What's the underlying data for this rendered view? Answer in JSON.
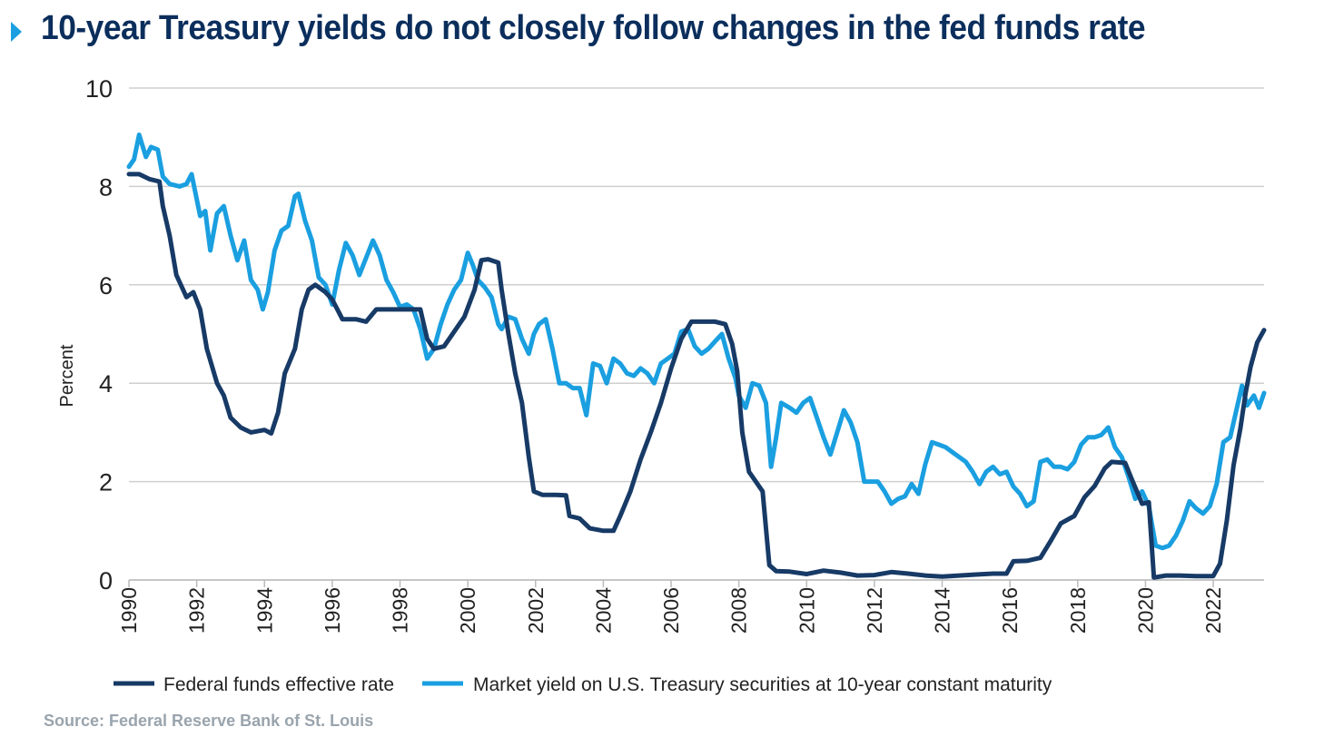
{
  "title": "10-year Treasury yields do not closely follow changes in the fed funds rate",
  "source": "Source: Federal Reserve Bank of St. Louis",
  "colors": {
    "title": "#0b2e5c",
    "arrow": "#1a9fe0",
    "fed": "#173a66",
    "treasury": "#1a9fe0",
    "grid": "#cfcfcf"
  },
  "chart_data": {
    "type": "line",
    "title": "10-year Treasury yields do not closely follow changes in the fed funds rate",
    "ylabel": "Percent",
    "xlabel": "",
    "ylim": [
      0,
      10
    ],
    "xlim": [
      1990,
      2023.5
    ],
    "yticks": [
      0,
      2,
      4,
      6,
      8,
      10
    ],
    "xticks": [
      1990,
      1992,
      1994,
      1996,
      1998,
      2000,
      2002,
      2004,
      2006,
      2008,
      2010,
      2012,
      2014,
      2016,
      2018,
      2020,
      2022
    ],
    "grid": "horizontal",
    "legend_position": "bottom",
    "series": [
      {
        "name": "Federal funds effective rate",
        "color": "#173a66",
        "points": [
          [
            1990.0,
            8.25
          ],
          [
            1990.3,
            8.25
          ],
          [
            1990.6,
            8.15
          ],
          [
            1990.9,
            8.1
          ],
          [
            1991.0,
            7.6
          ],
          [
            1991.2,
            7.0
          ],
          [
            1991.4,
            6.2
          ],
          [
            1991.7,
            5.75
          ],
          [
            1991.9,
            5.85
          ],
          [
            1992.1,
            5.5
          ],
          [
            1992.3,
            4.7
          ],
          [
            1992.6,
            4.0
          ],
          [
            1992.8,
            3.75
          ],
          [
            1993.0,
            3.3
          ],
          [
            1993.3,
            3.1
          ],
          [
            1993.6,
            3.0
          ],
          [
            1994.0,
            3.05
          ],
          [
            1994.2,
            2.98
          ],
          [
            1994.4,
            3.4
          ],
          [
            1994.6,
            4.2
          ],
          [
            1994.9,
            4.7
          ],
          [
            1995.1,
            5.5
          ],
          [
            1995.3,
            5.9
          ],
          [
            1995.5,
            6.0
          ],
          [
            1995.8,
            5.85
          ],
          [
            1996.0,
            5.7
          ],
          [
            1996.3,
            5.3
          ],
          [
            1996.7,
            5.3
          ],
          [
            1997.0,
            5.25
          ],
          [
            1997.3,
            5.5
          ],
          [
            1997.8,
            5.5
          ],
          [
            1998.3,
            5.5
          ],
          [
            1998.6,
            5.5
          ],
          [
            1998.8,
            4.9
          ],
          [
            1999.0,
            4.7
          ],
          [
            1999.3,
            4.75
          ],
          [
            1999.6,
            5.05
          ],
          [
            1999.9,
            5.35
          ],
          [
            2000.2,
            5.9
          ],
          [
            2000.4,
            6.5
          ],
          [
            2000.6,
            6.52
          ],
          [
            2000.9,
            6.45
          ],
          [
            2001.0,
            5.9
          ],
          [
            2001.2,
            5.0
          ],
          [
            2001.4,
            4.2
          ],
          [
            2001.6,
            3.6
          ],
          [
            2001.8,
            2.5
          ],
          [
            2001.95,
            1.8
          ],
          [
            2002.2,
            1.73
          ],
          [
            2002.6,
            1.73
          ],
          [
            2002.9,
            1.72
          ],
          [
            2003.0,
            1.3
          ],
          [
            2003.3,
            1.25
          ],
          [
            2003.6,
            1.05
          ],
          [
            2004.0,
            1.0
          ],
          [
            2004.3,
            1.0
          ],
          [
            2004.5,
            1.3
          ],
          [
            2004.8,
            1.8
          ],
          [
            2005.1,
            2.45
          ],
          [
            2005.4,
            3.0
          ],
          [
            2005.7,
            3.6
          ],
          [
            2006.0,
            4.3
          ],
          [
            2006.3,
            4.9
          ],
          [
            2006.6,
            5.25
          ],
          [
            2006.9,
            5.25
          ],
          [
            2007.3,
            5.25
          ],
          [
            2007.6,
            5.2
          ],
          [
            2007.8,
            4.8
          ],
          [
            2007.95,
            4.25
          ],
          [
            2008.1,
            3.0
          ],
          [
            2008.3,
            2.2
          ],
          [
            2008.5,
            2.0
          ],
          [
            2008.7,
            1.8
          ],
          [
            2008.9,
            0.3
          ],
          [
            2009.1,
            0.18
          ],
          [
            2009.5,
            0.17
          ],
          [
            2010.0,
            0.12
          ],
          [
            2010.5,
            0.19
          ],
          [
            2011.0,
            0.15
          ],
          [
            2011.5,
            0.09
          ],
          [
            2012.0,
            0.1
          ],
          [
            2012.5,
            0.16
          ],
          [
            2013.0,
            0.13
          ],
          [
            2013.5,
            0.09
          ],
          [
            2014.0,
            0.07
          ],
          [
            2014.5,
            0.09
          ],
          [
            2015.0,
            0.11
          ],
          [
            2015.5,
            0.13
          ],
          [
            2015.9,
            0.13
          ],
          [
            2016.1,
            0.38
          ],
          [
            2016.5,
            0.39
          ],
          [
            2016.9,
            0.45
          ],
          [
            2017.2,
            0.79
          ],
          [
            2017.5,
            1.15
          ],
          [
            2017.9,
            1.3
          ],
          [
            2018.2,
            1.68
          ],
          [
            2018.5,
            1.91
          ],
          [
            2018.8,
            2.27
          ],
          [
            2019.0,
            2.4
          ],
          [
            2019.4,
            2.38
          ],
          [
            2019.6,
            2.04
          ],
          [
            2019.9,
            1.55
          ],
          [
            2020.1,
            1.58
          ],
          [
            2020.25,
            0.05
          ],
          [
            2020.6,
            0.09
          ],
          [
            2021.0,
            0.09
          ],
          [
            2021.5,
            0.08
          ],
          [
            2022.0,
            0.08
          ],
          [
            2022.2,
            0.33
          ],
          [
            2022.4,
            1.21
          ],
          [
            2022.6,
            2.33
          ],
          [
            2022.8,
            3.08
          ],
          [
            2022.95,
            3.78
          ],
          [
            2023.1,
            4.33
          ],
          [
            2023.3,
            4.83
          ],
          [
            2023.5,
            5.08
          ]
        ]
      },
      {
        "name": "Market yield on U.S. Treasury securities at 10-year constant maturity",
        "color": "#1a9fe0",
        "points": [
          [
            1990.0,
            8.4
          ],
          [
            1990.15,
            8.55
          ],
          [
            1990.3,
            9.05
          ],
          [
            1990.5,
            8.6
          ],
          [
            1990.65,
            8.8
          ],
          [
            1990.85,
            8.75
          ],
          [
            1991.0,
            8.2
          ],
          [
            1991.2,
            8.05
          ],
          [
            1991.5,
            8.0
          ],
          [
            1991.7,
            8.05
          ],
          [
            1991.85,
            8.25
          ],
          [
            1992.1,
            7.4
          ],
          [
            1992.25,
            7.5
          ],
          [
            1992.4,
            6.7
          ],
          [
            1992.6,
            7.45
          ],
          [
            1992.8,
            7.6
          ],
          [
            1993.0,
            7.0
          ],
          [
            1993.2,
            6.5
          ],
          [
            1993.4,
            6.9
          ],
          [
            1993.6,
            6.1
          ],
          [
            1993.8,
            5.9
          ],
          [
            1993.95,
            5.5
          ],
          [
            1994.1,
            5.85
          ],
          [
            1994.3,
            6.7
          ],
          [
            1994.5,
            7.1
          ],
          [
            1994.7,
            7.2
          ],
          [
            1994.9,
            7.8
          ],
          [
            1995.0,
            7.85
          ],
          [
            1995.2,
            7.3
          ],
          [
            1995.4,
            6.9
          ],
          [
            1995.6,
            6.15
          ],
          [
            1995.8,
            6.0
          ],
          [
            1996.0,
            5.6
          ],
          [
            1996.2,
            6.3
          ],
          [
            1996.4,
            6.85
          ],
          [
            1996.6,
            6.6
          ],
          [
            1996.8,
            6.2
          ],
          [
            1997.0,
            6.55
          ],
          [
            1997.2,
            6.9
          ],
          [
            1997.4,
            6.6
          ],
          [
            1997.6,
            6.1
          ],
          [
            1997.8,
            5.85
          ],
          [
            1998.0,
            5.55
          ],
          [
            1998.2,
            5.6
          ],
          [
            1998.4,
            5.5
          ],
          [
            1998.6,
            5.1
          ],
          [
            1998.8,
            4.5
          ],
          [
            1999.0,
            4.7
          ],
          [
            1999.2,
            5.2
          ],
          [
            1999.4,
            5.6
          ],
          [
            1999.6,
            5.9
          ],
          [
            1999.8,
            6.1
          ],
          [
            2000.0,
            6.65
          ],
          [
            2000.15,
            6.4
          ],
          [
            2000.3,
            6.1
          ],
          [
            2000.5,
            5.95
          ],
          [
            2000.7,
            5.75
          ],
          [
            2000.9,
            5.2
          ],
          [
            2001.0,
            5.1
          ],
          [
            2001.2,
            5.35
          ],
          [
            2001.4,
            5.3
          ],
          [
            2001.6,
            4.9
          ],
          [
            2001.8,
            4.6
          ],
          [
            2001.95,
            5.0
          ],
          [
            2002.1,
            5.2
          ],
          [
            2002.3,
            5.3
          ],
          [
            2002.5,
            4.7
          ],
          [
            2002.7,
            4.0
          ],
          [
            2002.9,
            4.0
          ],
          [
            2003.1,
            3.9
          ],
          [
            2003.3,
            3.9
          ],
          [
            2003.5,
            3.35
          ],
          [
            2003.7,
            4.4
          ],
          [
            2003.9,
            4.35
          ],
          [
            2004.1,
            4.0
          ],
          [
            2004.3,
            4.5
          ],
          [
            2004.5,
            4.4
          ],
          [
            2004.7,
            4.2
          ],
          [
            2004.9,
            4.15
          ],
          [
            2005.1,
            4.3
          ],
          [
            2005.3,
            4.2
          ],
          [
            2005.5,
            4.0
          ],
          [
            2005.7,
            4.4
          ],
          [
            2005.9,
            4.5
          ],
          [
            2006.1,
            4.6
          ],
          [
            2006.3,
            5.05
          ],
          [
            2006.5,
            5.1
          ],
          [
            2006.7,
            4.75
          ],
          [
            2006.9,
            4.6
          ],
          [
            2007.1,
            4.7
          ],
          [
            2007.3,
            4.85
          ],
          [
            2007.5,
            5.0
          ],
          [
            2007.7,
            4.5
          ],
          [
            2007.9,
            4.1
          ],
          [
            2008.0,
            3.75
          ],
          [
            2008.2,
            3.5
          ],
          [
            2008.4,
            4.0
          ],
          [
            2008.6,
            3.95
          ],
          [
            2008.8,
            3.6
          ],
          [
            2008.95,
            2.3
          ],
          [
            2009.1,
            2.9
          ],
          [
            2009.25,
            3.6
          ],
          [
            2009.5,
            3.5
          ],
          [
            2009.7,
            3.4
          ],
          [
            2009.9,
            3.6
          ],
          [
            2010.1,
            3.7
          ],
          [
            2010.3,
            3.3
          ],
          [
            2010.5,
            2.9
          ],
          [
            2010.7,
            2.55
          ],
          [
            2010.9,
            3.0
          ],
          [
            2011.1,
            3.45
          ],
          [
            2011.3,
            3.2
          ],
          [
            2011.5,
            2.8
          ],
          [
            2011.7,
            2.0
          ],
          [
            2011.9,
            2.0
          ],
          [
            2012.1,
            2.0
          ],
          [
            2012.3,
            1.8
          ],
          [
            2012.5,
            1.55
          ],
          [
            2012.7,
            1.65
          ],
          [
            2012.9,
            1.7
          ],
          [
            2013.1,
            1.95
          ],
          [
            2013.3,
            1.75
          ],
          [
            2013.5,
            2.35
          ],
          [
            2013.7,
            2.8
          ],
          [
            2013.9,
            2.75
          ],
          [
            2014.1,
            2.7
          ],
          [
            2014.3,
            2.6
          ],
          [
            2014.5,
            2.5
          ],
          [
            2014.7,
            2.4
          ],
          [
            2014.9,
            2.2
          ],
          [
            2015.1,
            1.95
          ],
          [
            2015.3,
            2.2
          ],
          [
            2015.5,
            2.3
          ],
          [
            2015.7,
            2.15
          ],
          [
            2015.9,
            2.2
          ],
          [
            2016.1,
            1.9
          ],
          [
            2016.3,
            1.75
          ],
          [
            2016.5,
            1.5
          ],
          [
            2016.7,
            1.6
          ],
          [
            2016.9,
            2.4
          ],
          [
            2017.1,
            2.45
          ],
          [
            2017.3,
            2.3
          ],
          [
            2017.5,
            2.3
          ],
          [
            2017.7,
            2.25
          ],
          [
            2017.9,
            2.4
          ],
          [
            2018.1,
            2.75
          ],
          [
            2018.3,
            2.9
          ],
          [
            2018.5,
            2.9
          ],
          [
            2018.7,
            2.95
          ],
          [
            2018.9,
            3.1
          ],
          [
            2019.1,
            2.7
          ],
          [
            2019.3,
            2.5
          ],
          [
            2019.5,
            2.1
          ],
          [
            2019.7,
            1.65
          ],
          [
            2019.9,
            1.8
          ],
          [
            2020.1,
            1.5
          ],
          [
            2020.3,
            0.7
          ],
          [
            2020.5,
            0.65
          ],
          [
            2020.7,
            0.7
          ],
          [
            2020.9,
            0.9
          ],
          [
            2021.1,
            1.2
          ],
          [
            2021.3,
            1.6
          ],
          [
            2021.5,
            1.45
          ],
          [
            2021.7,
            1.35
          ],
          [
            2021.9,
            1.5
          ],
          [
            2022.1,
            1.95
          ],
          [
            2022.3,
            2.8
          ],
          [
            2022.5,
            2.9
          ],
          [
            2022.7,
            3.5
          ],
          [
            2022.85,
            3.95
          ],
          [
            2023.0,
            3.55
          ],
          [
            2023.2,
            3.75
          ],
          [
            2023.35,
            3.5
          ],
          [
            2023.5,
            3.8
          ]
        ]
      }
    ]
  }
}
